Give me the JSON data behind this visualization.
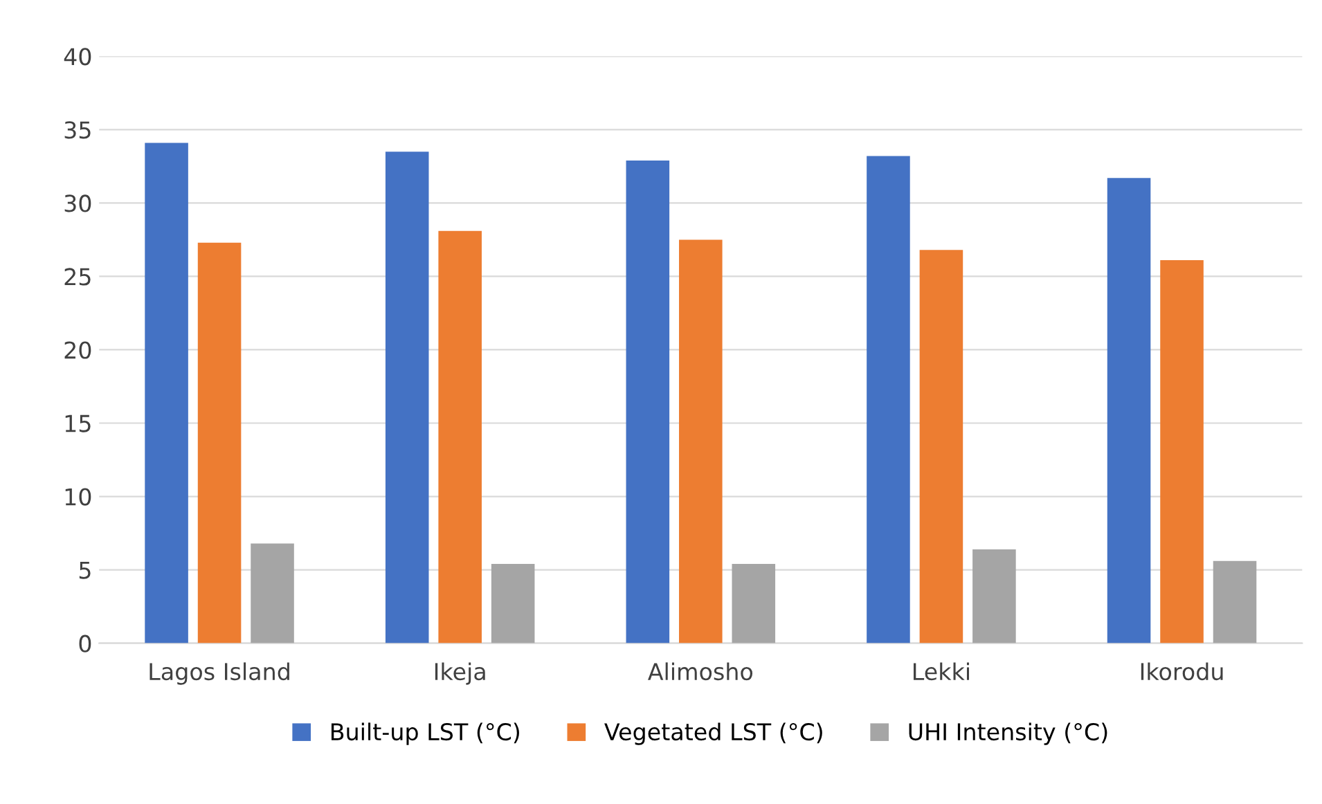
{
  "chart_data": {
    "type": "bar",
    "categories": [
      "Lagos Island",
      "Ikeja",
      "Alimosho",
      "Lekki",
      "Ikorodu"
    ],
    "series": [
      {
        "name": "Built-up LST (°C)",
        "color": "#4472c4",
        "values": [
          34.1,
          33.5,
          32.9,
          33.2,
          31.7
        ]
      },
      {
        "name": "Vegetated LST (°C)",
        "color": "#ed7d31",
        "values": [
          27.3,
          28.1,
          27.5,
          26.8,
          26.1
        ]
      },
      {
        "name": "UHI Intensity (°C)",
        "color": "#a5a5a5",
        "values": [
          6.8,
          5.4,
          5.4,
          6.4,
          5.6
        ]
      }
    ],
    "ylim": [
      0,
      40
    ],
    "yticks": [
      0,
      5,
      10,
      15,
      20,
      25,
      30,
      35,
      40
    ],
    "grid": "y",
    "legend": "bottom"
  }
}
